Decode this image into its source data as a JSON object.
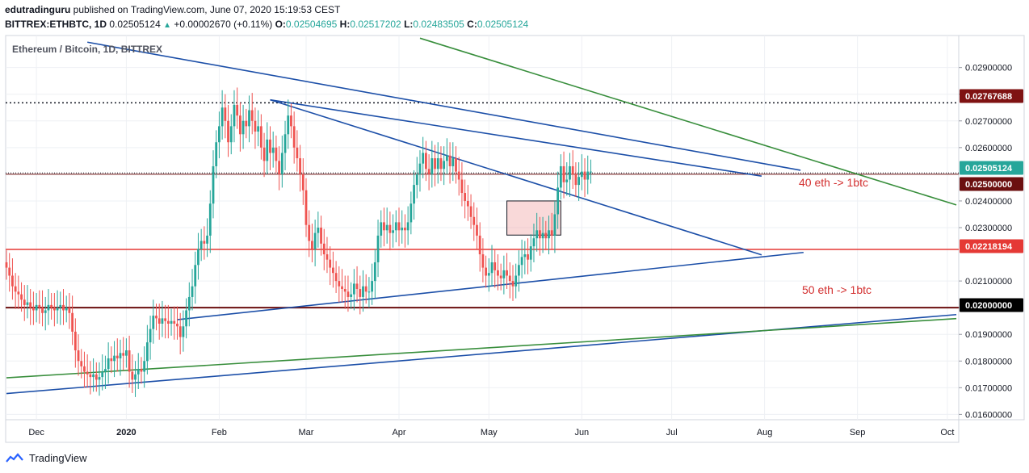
{
  "header": {
    "author": "edutradinguru",
    "published": "published on TradingView.com, June 07, 2020 15:19:53 CEST",
    "symbol": "BITTREX:ETHBTC, 1D",
    "last": "0.02505124",
    "change": "+0.00002670 (+0.11%)",
    "o_label": "O:",
    "o_value": "0.02504695",
    "h_label": "H:",
    "h_value": "0.02517202",
    "l_label": "L:",
    "l_value": "0.02483505",
    "c_label": "C:",
    "c_value": "0.02505124"
  },
  "footer": {
    "brand": "TradingView"
  },
  "chart_data": {
    "type": "candlestick",
    "title": "Ethereum / Bitcoin, 1D, BITTREX",
    "y_range": [
      0.0158,
      0.0302
    ],
    "y_ticks": [
      "0.01600000",
      "0.01700000",
      "0.01800000",
      "0.01900000",
      "0.02000000",
      "0.02100000",
      "0.02300000",
      "0.02400000",
      "0.02600000",
      "0.02700000",
      "0.02800000",
      "0.02900000"
    ],
    "x_ticks": [
      "Dec",
      "2020",
      "Feb",
      "Mar",
      "Apr",
      "May",
      "Jun",
      "Jul",
      "Aug",
      "Sep",
      "Oct"
    ],
    "price_tags": [
      {
        "label": "0.02767688",
        "value": 0.02767688,
        "color": "#7f1212"
      },
      {
        "label": "0.02505124",
        "value": 0.02505124,
        "color": "#26a69a"
      },
      {
        "label": "0.02500000",
        "value": 0.025,
        "color": "#6b0f0f"
      },
      {
        "label": "0.02218194",
        "value": 0.02218194,
        "color": "#e53935"
      },
      {
        "label": "0.02000000",
        "value": 0.02,
        "color": "#000000"
      }
    ],
    "annotations": [
      {
        "text": "40 eth -> 1btc"
      },
      {
        "text": "50 eth -> 1btc"
      }
    ],
    "closes": [
      0.0215,
      0.0212,
      0.0208,
      0.0206,
      0.0205,
      0.0203,
      0.0201,
      0.0202,
      0.02,
      0.0199,
      0.0201,
      0.02,
      0.0198,
      0.0199,
      0.0201,
      0.02,
      0.0199,
      0.02,
      0.0201,
      0.0199,
      0.02,
      0.0198,
      0.0191,
      0.0184,
      0.018,
      0.0178,
      0.0176,
      0.0175,
      0.0174,
      0.0175,
      0.0173,
      0.0174,
      0.0176,
      0.0177,
      0.0181,
      0.018,
      0.0182,
      0.0181,
      0.0183,
      0.0182,
      0.0184,
      0.0176,
      0.0173,
      0.0175,
      0.0177,
      0.0176,
      0.018,
      0.0187,
      0.0192,
      0.0197,
      0.0196,
      0.0194,
      0.0196,
      0.0195,
      0.0194,
      0.0195,
      0.0194,
      0.0193,
      0.0189,
      0.0193,
      0.0199,
      0.0204,
      0.0208,
      0.0216,
      0.0222,
      0.0225,
      0.0224,
      0.0227,
      0.0239,
      0.0253,
      0.0262,
      0.0268,
      0.0275,
      0.027,
      0.0262,
      0.0268,
      0.0276,
      0.0272,
      0.0265,
      0.027,
      0.0268,
      0.0274,
      0.027,
      0.0266,
      0.0268,
      0.026,
      0.0255,
      0.0263,
      0.0258,
      0.026,
      0.0255,
      0.025,
      0.0258,
      0.0265,
      0.0272,
      0.0268,
      0.026,
      0.0256,
      0.025,
      0.0244,
      0.0231,
      0.0225,
      0.0222,
      0.0228,
      0.023,
      0.0224,
      0.022,
      0.0218,
      0.0215,
      0.0213,
      0.021,
      0.0208,
      0.0207,
      0.0206,
      0.0204,
      0.0205,
      0.0209,
      0.0207,
      0.0204,
      0.0208,
      0.0206,
      0.0206,
      0.021,
      0.0217,
      0.0227,
      0.0232,
      0.0229,
      0.0231,
      0.0228,
      0.0229,
      0.0232,
      0.0229,
      0.023,
      0.0229,
      0.0232,
      0.0239,
      0.0246,
      0.025,
      0.0254,
      0.0258,
      0.0252,
      0.025,
      0.0256,
      0.0252,
      0.0256,
      0.0252,
      0.0255,
      0.0257,
      0.0253,
      0.0256,
      0.0251,
      0.0248,
      0.0243,
      0.024,
      0.0238,
      0.0234,
      0.0231,
      0.0227,
      0.022,
      0.0215,
      0.0212,
      0.0213,
      0.0217,
      0.0214,
      0.0212,
      0.0211,
      0.0214,
      0.0212,
      0.021,
      0.0208,
      0.0212,
      0.0216,
      0.0219,
      0.022,
      0.0218,
      0.0223,
      0.0226,
      0.0229,
      0.0226,
      0.0228,
      0.0226,
      0.0229,
      0.0227,
      0.0235,
      0.0245,
      0.0253,
      0.0247,
      0.0248,
      0.0253,
      0.025,
      0.0246,
      0.0249,
      0.0251,
      0.0248,
      0.0251,
      0.0251
    ]
  }
}
